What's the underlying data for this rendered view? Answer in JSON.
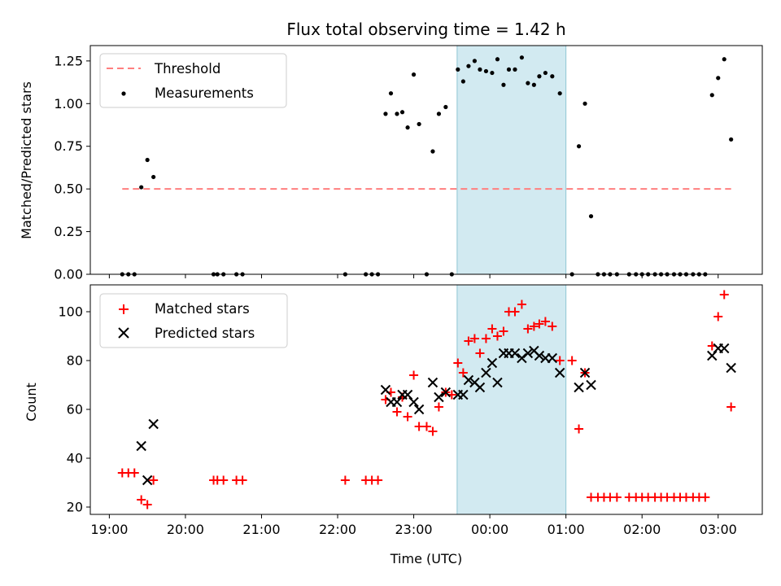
{
  "title": "Flux total observing time = 1.42 h",
  "colors": {
    "threshold": "#ff7f7f",
    "measurements": "#000000",
    "matched": "#ff0000",
    "predicted": "#000000",
    "band": "#add8e6"
  },
  "chart_data": [
    {
      "type": "scatter",
      "ylabel": "Matched/Predicted stars",
      "xlim": [
        18.75,
        27.58
      ],
      "ylim": [
        0,
        1.34
      ],
      "yticks": [
        0.0,
        0.25,
        0.5,
        0.75,
        1.0,
        1.25
      ],
      "ytick_labels": [
        "0.00",
        "0.25",
        "0.50",
        "0.75",
        "1.00",
        "1.25"
      ],
      "shaded_span": [
        23.57,
        25.0
      ],
      "legend": [
        "Threshold",
        "Measurements"
      ],
      "threshold": {
        "name": "Threshold",
        "x": [
          19.17,
          27.17
        ],
        "y": 0.5
      },
      "series": [
        {
          "name": "Measurements",
          "points": [
            [
              19.17,
              0
            ],
            [
              19.25,
              0
            ],
            [
              19.33,
              0
            ],
            [
              19.42,
              0.51
            ],
            [
              19.5,
              0.67
            ],
            [
              19.58,
              0.57
            ],
            [
              20.37,
              0
            ],
            [
              20.42,
              0
            ],
            [
              20.5,
              0
            ],
            [
              20.67,
              0
            ],
            [
              20.75,
              0
            ],
            [
              22.1,
              0
            ],
            [
              22.37,
              0
            ],
            [
              22.45,
              0
            ],
            [
              22.53,
              0
            ],
            [
              22.63,
              0.94
            ],
            [
              22.7,
              1.06
            ],
            [
              22.78,
              0.94
            ],
            [
              22.85,
              0.95
            ],
            [
              22.92,
              0.86
            ],
            [
              23.0,
              1.17
            ],
            [
              23.07,
              0.88
            ],
            [
              23.17,
              0
            ],
            [
              23.25,
              0.72
            ],
            [
              23.33,
              0.94
            ],
            [
              23.42,
              0.98
            ],
            [
              23.5,
              0
            ],
            [
              23.58,
              1.2
            ],
            [
              23.65,
              1.13
            ],
            [
              23.72,
              1.22
            ],
            [
              23.8,
              1.25
            ],
            [
              23.87,
              1.2
            ],
            [
              23.95,
              1.19
            ],
            [
              24.03,
              1.18
            ],
            [
              24.1,
              1.26
            ],
            [
              24.18,
              1.11
            ],
            [
              24.25,
              1.2
            ],
            [
              24.33,
              1.2
            ],
            [
              24.42,
              1.27
            ],
            [
              24.5,
              1.12
            ],
            [
              24.58,
              1.11
            ],
            [
              24.65,
              1.16
            ],
            [
              24.73,
              1.18
            ],
            [
              24.82,
              1.16
            ],
            [
              24.92,
              1.06
            ],
            [
              25.08,
              0
            ],
            [
              25.17,
              0.75
            ],
            [
              25.25,
              1.0
            ],
            [
              25.33,
              0.34
            ],
            [
              25.42,
              0
            ],
            [
              25.5,
              0
            ],
            [
              25.58,
              0
            ],
            [
              25.67,
              0
            ],
            [
              25.83,
              0
            ],
            [
              25.92,
              0
            ],
            [
              26.0,
              0
            ],
            [
              26.08,
              0
            ],
            [
              26.17,
              0
            ],
            [
              26.25,
              0
            ],
            [
              26.33,
              0
            ],
            [
              26.42,
              0
            ],
            [
              26.5,
              0
            ],
            [
              26.58,
              0
            ],
            [
              26.67,
              0
            ],
            [
              26.75,
              0
            ],
            [
              26.83,
              0
            ],
            [
              26.92,
              1.05
            ],
            [
              27.0,
              1.15
            ],
            [
              27.08,
              1.26
            ],
            [
              27.17,
              0.79
            ]
          ]
        }
      ]
    },
    {
      "type": "scatter",
      "xlabel": "Time (UTC)",
      "ylabel": "Count",
      "xlim": [
        18.75,
        27.58
      ],
      "ylim": [
        17,
        111
      ],
      "yticks": [
        20,
        40,
        60,
        80,
        100
      ],
      "ytick_labels": [
        "20",
        "40",
        "60",
        "80",
        "100"
      ],
      "xticks": [
        19,
        20,
        21,
        22,
        23,
        24,
        25,
        26,
        27
      ],
      "xtick_labels": [
        "19:00",
        "20:00",
        "21:00",
        "22:00",
        "23:00",
        "00:00",
        "01:00",
        "02:00",
        "03:00"
      ],
      "shaded_span": [
        23.57,
        25.0
      ],
      "legend": [
        "Matched stars",
        "Predicted stars"
      ],
      "series": [
        {
          "name": "Matched stars",
          "marker": "plus",
          "points": [
            [
              19.17,
              34
            ],
            [
              19.25,
              34
            ],
            [
              19.33,
              34
            ],
            [
              19.42,
              23
            ],
            [
              19.5,
              21
            ],
            [
              19.58,
              31
            ],
            [
              20.37,
              31
            ],
            [
              20.42,
              31
            ],
            [
              20.5,
              31
            ],
            [
              20.67,
              31
            ],
            [
              20.75,
              31
            ],
            [
              22.1,
              31
            ],
            [
              22.37,
              31
            ],
            [
              22.45,
              31
            ],
            [
              22.53,
              31
            ],
            [
              22.63,
              64
            ],
            [
              22.7,
              67
            ],
            [
              22.78,
              59
            ],
            [
              22.85,
              65
            ],
            [
              22.92,
              57
            ],
            [
              23.0,
              74
            ],
            [
              23.07,
              53
            ],
            [
              23.17,
              53
            ],
            [
              23.25,
              51
            ],
            [
              23.33,
              61
            ],
            [
              23.42,
              67
            ],
            [
              23.5,
              66
            ],
            [
              23.58,
              79
            ],
            [
              23.65,
              75
            ],
            [
              23.72,
              88
            ],
            [
              23.8,
              89
            ],
            [
              23.87,
              83
            ],
            [
              23.95,
              89
            ],
            [
              24.03,
              93
            ],
            [
              24.1,
              90
            ],
            [
              24.18,
              92
            ],
            [
              24.25,
              100
            ],
            [
              24.33,
              100
            ],
            [
              24.42,
              103
            ],
            [
              24.5,
              93
            ],
            [
              24.58,
              94
            ],
            [
              24.65,
              95
            ],
            [
              24.73,
              96
            ],
            [
              24.82,
              94
            ],
            [
              24.92,
              80
            ],
            [
              25.08,
              80
            ],
            [
              25.17,
              52
            ],
            [
              25.25,
              75
            ],
            [
              25.33,
              24
            ],
            [
              25.42,
              24
            ],
            [
              25.5,
              24
            ],
            [
              25.58,
              24
            ],
            [
              25.67,
              24
            ],
            [
              25.83,
              24
            ],
            [
              25.92,
              24
            ],
            [
              26.0,
              24
            ],
            [
              26.08,
              24
            ],
            [
              26.17,
              24
            ],
            [
              26.25,
              24
            ],
            [
              26.33,
              24
            ],
            [
              26.42,
              24
            ],
            [
              26.5,
              24
            ],
            [
              26.58,
              24
            ],
            [
              26.67,
              24
            ],
            [
              26.75,
              24
            ],
            [
              26.83,
              24
            ],
            [
              26.92,
              86
            ],
            [
              27.0,
              98
            ],
            [
              27.08,
              107
            ],
            [
              27.17,
              61
            ]
          ]
        },
        {
          "name": "Predicted stars",
          "marker": "x",
          "points": [
            [
              19.42,
              45
            ],
            [
              19.5,
              31
            ],
            [
              19.58,
              54
            ],
            [
              22.63,
              68
            ],
            [
              22.7,
              63
            ],
            [
              22.78,
              63
            ],
            [
              22.85,
              66
            ],
            [
              22.92,
              66
            ],
            [
              23.0,
              63
            ],
            [
              23.07,
              60
            ],
            [
              23.25,
              71
            ],
            [
              23.33,
              65
            ],
            [
              23.42,
              67
            ],
            [
              23.58,
              66
            ],
            [
              23.65,
              66
            ],
            [
              23.72,
              72
            ],
            [
              23.8,
              71
            ],
            [
              23.87,
              69
            ],
            [
              23.95,
              75
            ],
            [
              24.03,
              79
            ],
            [
              24.1,
              71
            ],
            [
              24.18,
              83
            ],
            [
              24.25,
              83
            ],
            [
              24.33,
              83
            ],
            [
              24.42,
              81
            ],
            [
              24.5,
              83
            ],
            [
              24.58,
              84
            ],
            [
              24.65,
              82
            ],
            [
              24.73,
              81
            ],
            [
              24.82,
              81
            ],
            [
              24.92,
              75
            ],
            [
              25.17,
              69
            ],
            [
              25.25,
              75
            ],
            [
              25.33,
              70
            ],
            [
              26.92,
              82
            ],
            [
              27.0,
              85
            ],
            [
              27.08,
              85
            ],
            [
              27.17,
              77
            ]
          ]
        }
      ]
    }
  ]
}
